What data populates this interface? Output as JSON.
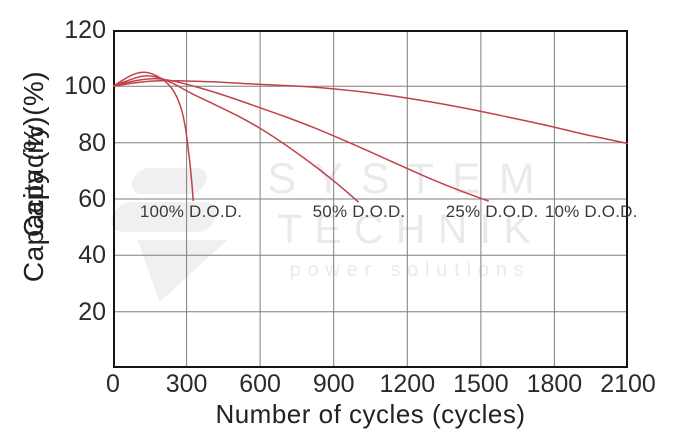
{
  "colors": {
    "curve": "#c2424b",
    "grid": "#7f7f7f",
    "axis_border": "#141414",
    "tick_text": "#2b2b2b",
    "annotation_text": "#3a3a3a",
    "watermark": "#e8e8e8"
  },
  "watermark": {
    "line1": "SYSTEM",
    "line2": "TECHNIK",
    "line3": "power solutions",
    "logo_icon": "bolt-flag-logo"
  },
  "chart_data": {
    "type": "line",
    "title": "",
    "xlabel": "Number of cycles (cycles)",
    "ylabel": "Capacity (%)",
    "xlim": [
      0,
      2100
    ],
    "ylim": [
      0,
      120
    ],
    "x_ticks": [
      0,
      300,
      600,
      900,
      1200,
      1500,
      1800,
      2100
    ],
    "y_ticks": [
      20,
      40,
      60,
      80,
      100,
      120
    ],
    "grid": true,
    "legend_position": "none",
    "series": [
      {
        "name": "100% D.O.D.",
        "points": [
          [
            0,
            100
          ],
          [
            40,
            102.2
          ],
          [
            80,
            104.1
          ],
          [
            120,
            105
          ],
          [
            160,
            104.4
          ],
          [
            200,
            102.6
          ],
          [
            235,
            99.8
          ],
          [
            260,
            96.2
          ],
          [
            280,
            91.5
          ],
          [
            295,
            85.5
          ],
          [
            305,
            79
          ],
          [
            315,
            71.5
          ],
          [
            322,
            65
          ],
          [
            327,
            59.5
          ]
        ]
      },
      {
        "name": "50% D.O.D.",
        "points": [
          [
            0,
            100
          ],
          [
            50,
            101.7
          ],
          [
            100,
            103.2
          ],
          [
            140,
            103.7
          ],
          [
            190,
            103
          ],
          [
            250,
            100.8
          ],
          [
            320,
            97.5
          ],
          [
            420,
            93.3
          ],
          [
            520,
            89
          ],
          [
            620,
            84
          ],
          [
            720,
            78.2
          ],
          [
            820,
            71.9
          ],
          [
            920,
            65
          ],
          [
            1000,
            59
          ]
        ]
      },
      {
        "name": "25% D.O.D.",
        "points": [
          [
            0,
            100
          ],
          [
            60,
            101.4
          ],
          [
            120,
            102.4
          ],
          [
            180,
            102.7
          ],
          [
            250,
            101.8
          ],
          [
            340,
            99.8
          ],
          [
            460,
            96.6
          ],
          [
            580,
            93
          ],
          [
            700,
            89.3
          ],
          [
            820,
            85.3
          ],
          [
            940,
            80.9
          ],
          [
            1060,
            76.3
          ],
          [
            1180,
            71.6
          ],
          [
            1300,
            67
          ],
          [
            1420,
            62.8
          ],
          [
            1530,
            59.3
          ]
        ]
      },
      {
        "name": "10% D.O.D.",
        "points": [
          [
            0,
            100
          ],
          [
            70,
            101
          ],
          [
            150,
            101.8
          ],
          [
            250,
            102
          ],
          [
            400,
            101.6
          ],
          [
            550,
            100.9
          ],
          [
            700,
            100.3
          ],
          [
            850,
            99.5
          ],
          [
            1000,
            98.2
          ],
          [
            1150,
            96.5
          ],
          [
            1300,
            94.4
          ],
          [
            1450,
            92
          ],
          [
            1600,
            89.3
          ],
          [
            1750,
            86.5
          ],
          [
            1900,
            83.4
          ],
          [
            2000,
            81.5
          ],
          [
            2100,
            79.7
          ]
        ]
      }
    ],
    "annotations": [
      {
        "text": "100% D.O.D.",
        "x": 318,
        "y": 55.5
      },
      {
        "text": "50% D.O.D.",
        "x": 1003,
        "y": 55.5
      },
      {
        "text": "25% D.O.D.",
        "x": 1546,
        "y": 55.5
      },
      {
        "text": "10% D.O.D.",
        "x": 1950,
        "y": 55.5
      }
    ]
  }
}
